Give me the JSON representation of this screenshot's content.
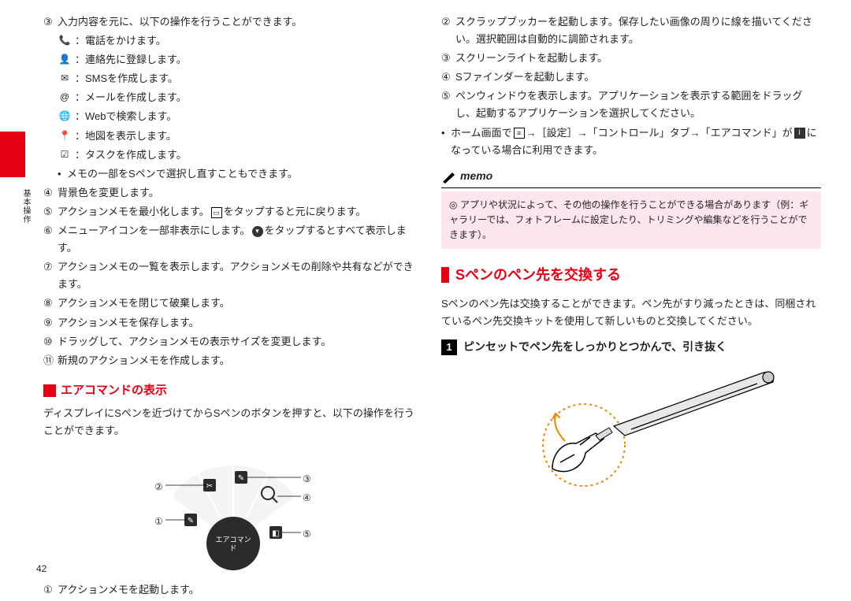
{
  "page_number": "42",
  "side_tab": "基本操作",
  "left_col": {
    "item3_lead": "入力内容を元に、以下の操作を行うことができます。",
    "icons": [
      {
        "glyph": "📞",
        "text": "：電話をかけます。"
      },
      {
        "glyph": "👤",
        "text": "：連絡先に登録します。"
      },
      {
        "glyph": "✉",
        "text": "：SMSを作成します。"
      },
      {
        "glyph": "@",
        "text": "：メールを作成します。"
      },
      {
        "glyph": "🌐",
        "text": "：Webで検索します。"
      },
      {
        "glyph": "📍",
        "text": "：地図を表示します。"
      },
      {
        "glyph": "☑",
        "text": "：タスクを作成します。"
      }
    ],
    "memo_note": "メモの一部をSペンで選択し直すこともできます。",
    "items": [
      {
        "n": "④",
        "t": "背景色を変更します。"
      },
      {
        "n": "⑤",
        "t": "アクションメモを最小化します。",
        "suffix": "をタップすると元に戻ります。"
      },
      {
        "n": "⑥",
        "t": "メニューアイコンを一部非表示にします。",
        "suffix": "をタップするとすべて表示します。"
      },
      {
        "n": "⑦",
        "t": "アクションメモの一覧を表示します。アクションメモの削除や共有などができます。"
      },
      {
        "n": "⑧",
        "t": "アクションメモを閉じて破棄します。"
      },
      {
        "n": "⑨",
        "t": "アクションメモを保存します。"
      },
      {
        "n": "⑩",
        "t": "ドラッグして、アクションメモの表示サイズを変更します。"
      },
      {
        "n": "⑪",
        "t": "新規のアクションメモを作成します。"
      }
    ],
    "sec_title": "エアコマンドの表示",
    "sec_text": "ディスプレイにSペンを近づけてからSペンのボタンを押すと、以下の操作を行うことができます。",
    "fan_center": "エアコマンド",
    "fan_labels": [
      "①",
      "②",
      "③",
      "④",
      "⑤"
    ],
    "bottom_item": {
      "n": "①",
      "t": "アクションメモを起動します。"
    }
  },
  "right_col": {
    "items": [
      {
        "n": "②",
        "t": "スクラップブッカーを起動します。保存したい画像の周りに線を描いてください。選択範囲は自動的に調節されます。"
      },
      {
        "n": "③",
        "t": "スクリーンライトを起動します。"
      },
      {
        "n": "④",
        "t": "Sファインダーを起動します。"
      },
      {
        "n": "⑤",
        "t": "ペンウィンドウを表示します。アプリケーションを表示する範囲をドラッグし、起動するアプリケーションを選択してください。"
      }
    ],
    "home_note_a": "ホーム画面で",
    "home_note_b": "→［設定］→「コントロール」タブ→「エアコマンド」が",
    "home_note_c": "になっている場合に利用できます。",
    "memo_title": "memo",
    "memo_text": "アプリや状況によって、その他の操作を行うことができる場合があります（例：ギャラリーでは、フォトフレームに設定したり、トリミングや編集などを行うことができます）。",
    "big_title": "Sペンのペン先を交換する",
    "big_text": "Sペンのペン先は交換することができます。ペン先がすり減ったときは、同梱されているペン先交換キットを使用して新しいものと交換してください。",
    "step_num": "1",
    "step_title": "ピンセットでペン先をしっかりとつかんで、引き抜く"
  },
  "colors": {
    "accent": "#e60012",
    "memo_bg": "#fde6ef",
    "dotted": "#f08300"
  }
}
